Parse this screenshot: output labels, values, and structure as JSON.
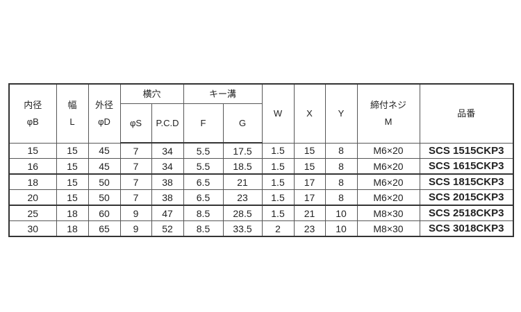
{
  "headers": {
    "inner_dia": [
      "内径",
      "φB"
    ],
    "width": [
      "幅",
      "L"
    ],
    "outer_dia": [
      "外径",
      "φD"
    ],
    "side_hole": "横穴",
    "phi_s": "φS",
    "pcd": "P.C.D",
    "keyway": "キー溝",
    "f": "F",
    "g": "G",
    "w": "W",
    "x": "X",
    "y": "Y",
    "screw": [
      "締付ネジ",
      "M"
    ],
    "part_no": "品番"
  },
  "rows": [
    [
      "15",
      "15",
      "45",
      "7",
      "34",
      "5.5",
      "17.5",
      "1.5",
      "15",
      "8",
      "M6×20",
      "SCS 1515CKP3"
    ],
    [
      "16",
      "15",
      "45",
      "7",
      "34",
      "5.5",
      "18.5",
      "1.5",
      "15",
      "8",
      "M6×20",
      "SCS 1615CKP3"
    ],
    [
      "18",
      "15",
      "50",
      "7",
      "38",
      "6.5",
      "21",
      "1.5",
      "17",
      "8",
      "M6×20",
      "SCS 1815CKP3"
    ],
    [
      "20",
      "15",
      "50",
      "7",
      "38",
      "6.5",
      "23",
      "1.5",
      "17",
      "8",
      "M6×20",
      "SCS 2015CKP3"
    ],
    [
      "25",
      "18",
      "60",
      "9",
      "47",
      "8.5",
      "28.5",
      "1.5",
      "21",
      "10",
      "M8×30",
      "SCS 2518CKP3"
    ],
    [
      "30",
      "18",
      "65",
      "9",
      "52",
      "8.5",
      "33.5",
      "2",
      "23",
      "10",
      "M8×30",
      "SCS 3018CKP3"
    ]
  ]
}
